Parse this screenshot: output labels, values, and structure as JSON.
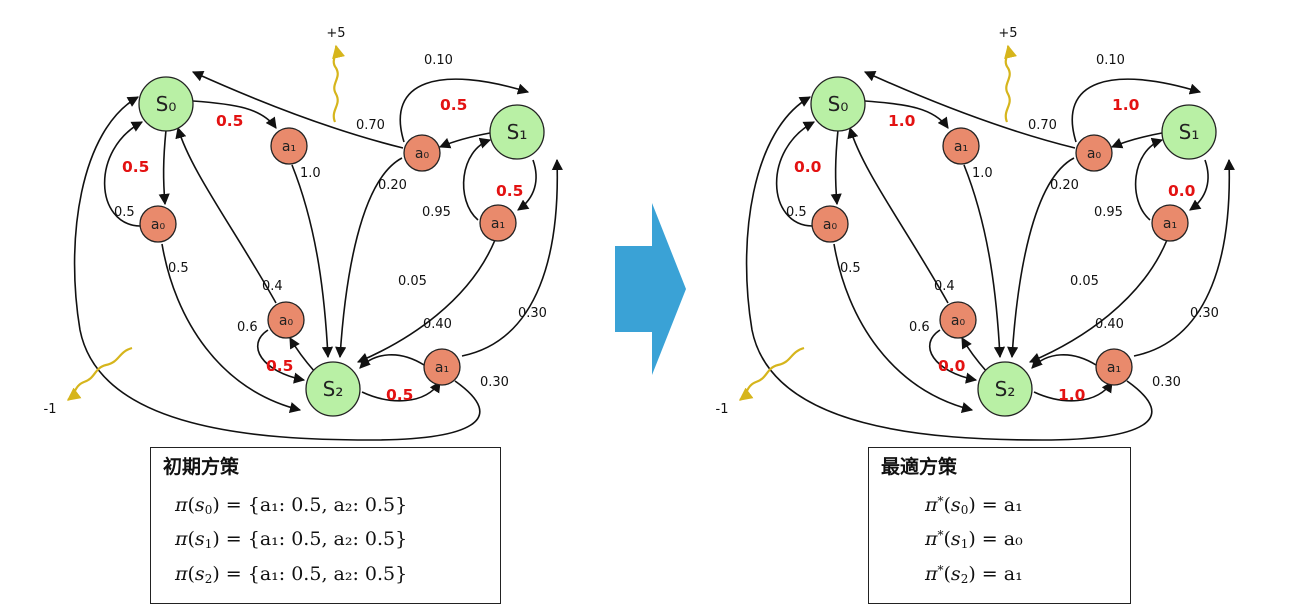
{
  "diagram": {
    "states": [
      "S₀",
      "S₁",
      "S₂"
    ],
    "actions": [
      "a₀",
      "a₁"
    ],
    "rewards": {
      "plus": "+5",
      "minus": "-1"
    },
    "transition_probs": {
      "s0_a0_self": "0.5",
      "s0_a0_to_s2": "0.5",
      "s0_a1_to_s2": "1.0",
      "s1_a0_to_s1": "0.10",
      "s1_a0_to_s0": "0.70",
      "s1_a0_to_s2": "0.20",
      "s1_a1_to_s1": "0.95",
      "s1_a1_to_s2": "0.05",
      "s2_a0_to_s0": "0.4",
      "s2_a0_to_s2": "0.6",
      "s2_a1_to_s2": "0.40",
      "s2_a1_to_s1": "0.30",
      "s2_a1_to_s0": "0.30"
    }
  },
  "panels": [
    {
      "title": "初期方策",
      "policy": {
        "s0_a0": "0.5",
        "s0_a1": "0.5",
        "s1_a0": "0.5",
        "s1_a1": "0.5",
        "s2_a0": "0.5",
        "s2_a1": "0.5"
      },
      "formulas": [
        {
          "pi": "π",
          "star": "",
          "state": "s",
          "sub": "0",
          "rhs": " = {a₁: 0.5, a₂: 0.5}"
        },
        {
          "pi": "π",
          "star": "",
          "state": "s",
          "sub": "1",
          "rhs": " = {a₁: 0.5, a₂: 0.5}"
        },
        {
          "pi": "π",
          "star": "",
          "state": "s",
          "sub": "2",
          "rhs": " = {a₁: 0.5, a₂: 0.5}"
        }
      ]
    },
    {
      "title": "最適方策",
      "policy": {
        "s0_a0": "0.0",
        "s0_a1": "1.0",
        "s1_a0": "1.0",
        "s1_a1": "0.0",
        "s2_a0": "0.0",
        "s2_a1": "1.0"
      },
      "formulas": [
        {
          "pi": "π",
          "star": "*",
          "state": "s",
          "sub": "0",
          "rhs": " = a₁"
        },
        {
          "pi": "π",
          "star": "*",
          "state": "s",
          "sub": "1",
          "rhs": " = a₀"
        },
        {
          "pi": "π",
          "star": "*",
          "state": "s",
          "sub": "2",
          "rhs": " = a₁"
        }
      ]
    }
  ],
  "arrow_color": "#3aa2d6"
}
